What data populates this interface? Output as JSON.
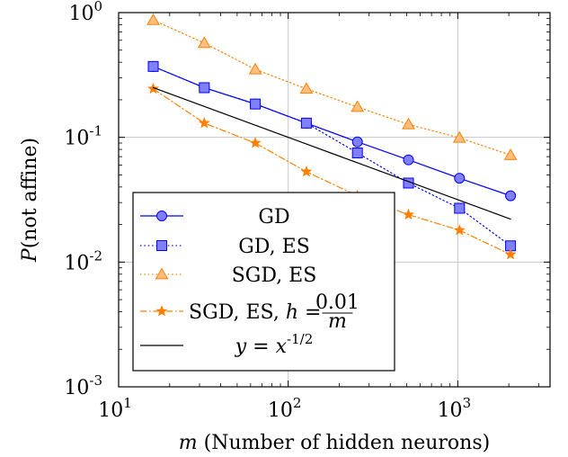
{
  "chart_data": {
    "type": "line",
    "title": "",
    "xlabel": "m (Number of hidden neurons)",
    "ylabel": "P(not affine)",
    "xscale": "log",
    "yscale": "log",
    "xlim": [
      10,
      3500
    ],
    "ylim": [
      0.001,
      1
    ],
    "grid": true,
    "legend_position": "bottom-left",
    "x_tick_labels": [
      "10^1",
      "10^2",
      "10^3"
    ],
    "y_tick_labels": [
      "10^-3",
      "10^-2",
      "10^-1",
      "10^0"
    ],
    "x": [
      16,
      32,
      64,
      128,
      256,
      512,
      1024,
      2048
    ],
    "series": [
      {
        "name": "GD",
        "color": "#0000ff",
        "marker": "circle",
        "linestyle": "solid",
        "values": [
          0.37,
          0.25,
          0.185,
          0.13,
          0.092,
          0.066,
          0.047,
          0.034
        ]
      },
      {
        "name": "GD, ES",
        "color": "#0000ff",
        "marker": "square",
        "linestyle": "dotted",
        "values": [
          0.37,
          0.25,
          0.185,
          0.13,
          0.075,
          0.043,
          0.027,
          0.0135
        ]
      },
      {
        "name": "SGD, ES",
        "color": "#ff8000",
        "marker": "triangle",
        "linestyle": "dotted",
        "values": [
          0.87,
          0.57,
          0.35,
          0.245,
          0.175,
          0.127,
          0.099,
          0.072
        ]
      },
      {
        "name": "SGD, ES, h = 0.01/m",
        "color": "#ff8000",
        "marker": "star",
        "linestyle": "dashdot",
        "values": [
          0.245,
          0.13,
          0.09,
          0.053,
          0.034,
          0.024,
          0.018,
          0.0115
        ]
      },
      {
        "name": "y = x^-1/2",
        "color": "#000000",
        "marker": "none",
        "linestyle": "solid",
        "values": [
          0.25,
          0.1768,
          0.125,
          0.0884,
          0.0625,
          0.0442,
          0.03125,
          0.0221
        ]
      }
    ]
  }
}
